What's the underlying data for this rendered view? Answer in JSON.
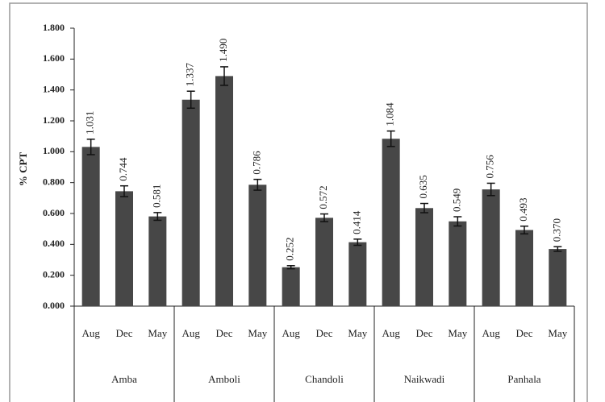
{
  "chart_data": {
    "type": "bar",
    "y_label": "% CPT",
    "groups": [
      "Amba",
      "Amboli",
      "Chandoli",
      "Naikwadi",
      "Panhala"
    ],
    "categories": [
      "Aug",
      "Dec",
      "May",
      "Aug",
      "Dec",
      "May",
      "Aug",
      "Dec",
      "May",
      "Aug",
      "Dec",
      "May",
      "Aug",
      "Dec",
      "May"
    ],
    "values": [
      1.031,
      0.744,
      0.581,
      1.337,
      1.49,
      0.786,
      0.252,
      0.572,
      0.414,
      1.084,
      0.635,
      0.549,
      0.756,
      0.493,
      0.37
    ],
    "value_labels": [
      "1.031",
      "0.744",
      "0.581",
      "1.337",
      "1.490",
      "0.786",
      "0.252",
      "0.572",
      "0.414",
      "1.084",
      "0.635",
      "0.549",
      "0.756",
      "0.493",
      "0.370"
    ],
    "errors": [
      0.05,
      0.035,
      0.025,
      0.055,
      0.06,
      0.035,
      0.01,
      0.025,
      0.02,
      0.05,
      0.03,
      0.03,
      0.04,
      0.025,
      0.015
    ],
    "color": "#474747",
    "ylim": [
      0,
      1.8
    ],
    "yticks": [
      {
        "value": 0,
        "label": "0.000"
      },
      {
        "value": 0.2,
        "label": "0.200"
      },
      {
        "value": 0.4,
        "label": "0.400"
      },
      {
        "value": 0.6,
        "label": "0.600"
      },
      {
        "value": 0.8,
        "label": "0.800"
      },
      {
        "value": 1.0,
        "label": "1.000"
      },
      {
        "value": 1.2,
        "label": "1.200"
      },
      {
        "value": 1.4,
        "label": "1.400"
      },
      {
        "value": 1.6,
        "label": "1.600"
      },
      {
        "value": 1.8,
        "label": "1.800"
      }
    ]
  }
}
